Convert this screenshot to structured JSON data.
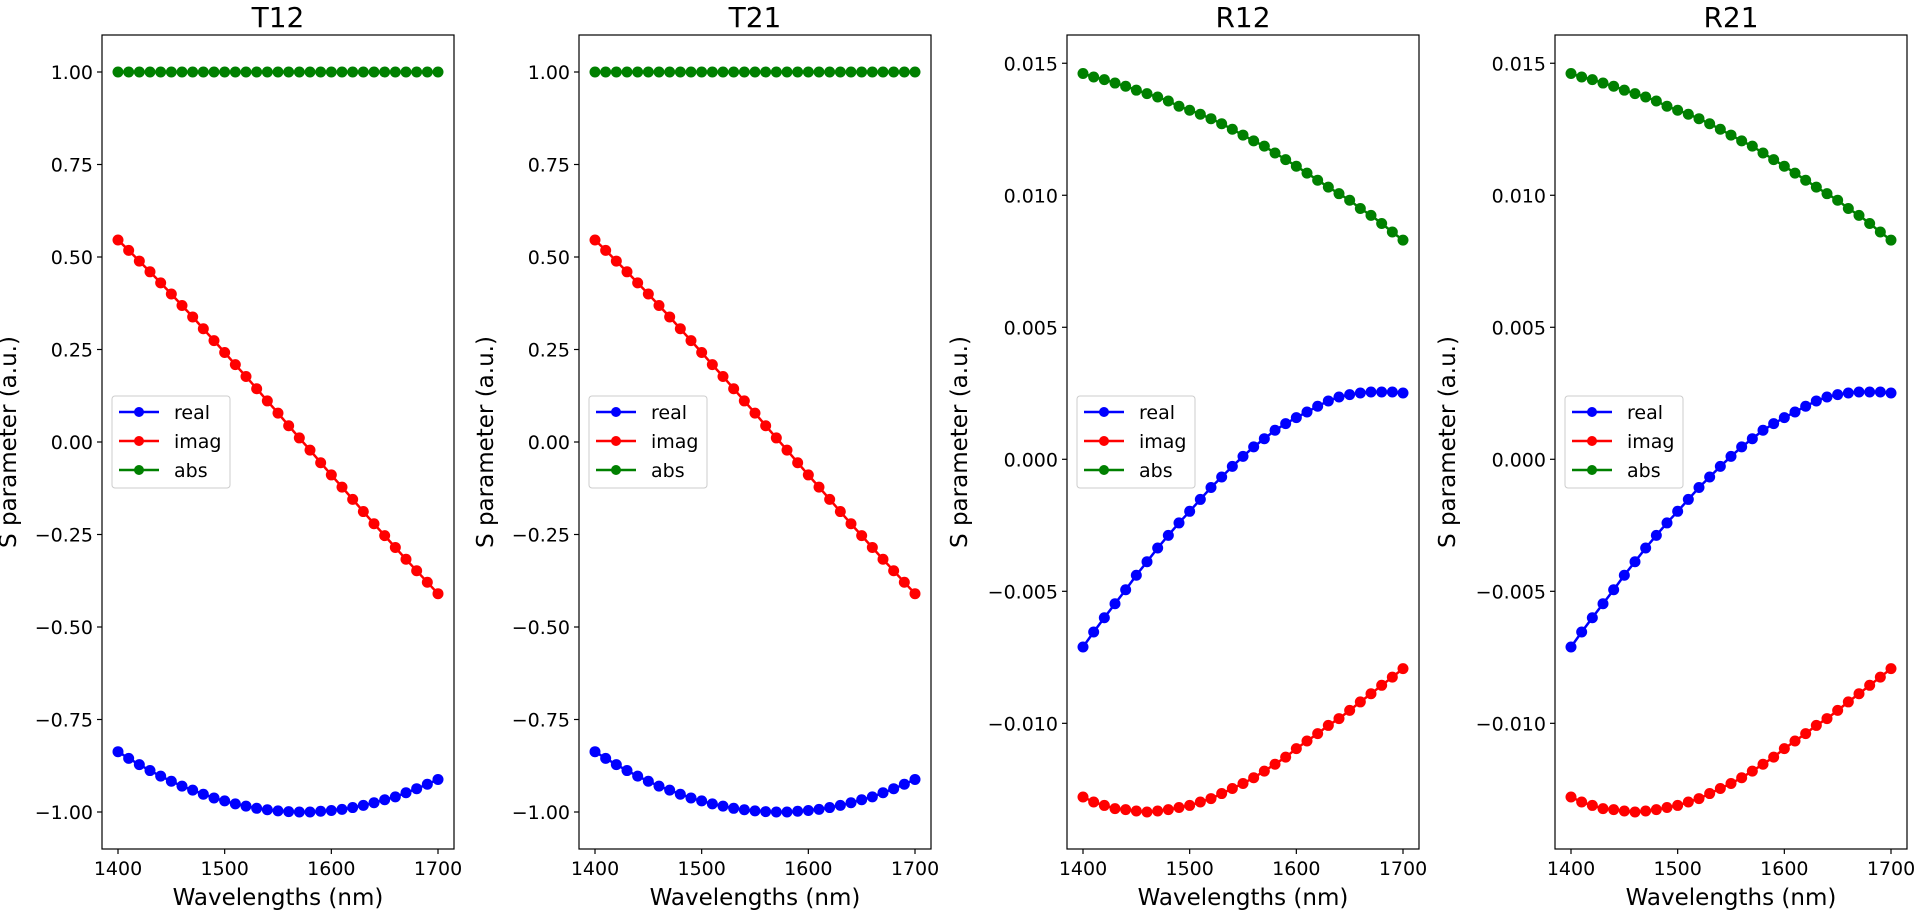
{
  "chart_data": [
    {
      "type": "line",
      "title": "T12",
      "xlabel": "Wavelengths (nm)",
      "ylabel": "S parameter (a.u.)",
      "xlim": [
        1385,
        1715
      ],
      "ylim": [
        -1.1,
        1.1
      ],
      "xticks": [
        1400,
        1500,
        1600,
        1700
      ],
      "xtick_labels": [
        "1400",
        "1500",
        "1600",
        "1700"
      ],
      "yticks": [
        -1.0,
        -0.75,
        -0.5,
        -0.25,
        0.0,
        0.25,
        0.5,
        0.75,
        1.0
      ],
      "ytick_labels": [
        "−1.00",
        "−0.75",
        "−0.50",
        "−0.25",
        "0.00",
        "0.25",
        "0.50",
        "0.75",
        "1.00"
      ],
      "legend_placement": "center-left",
      "x": [
        1400,
        1410,
        1420,
        1430,
        1440,
        1450,
        1460,
        1470,
        1480,
        1490,
        1500,
        1510,
        1520,
        1530,
        1540,
        1550,
        1560,
        1570,
        1580,
        1590,
        1600,
        1610,
        1620,
        1630,
        1640,
        1650,
        1660,
        1670,
        1680,
        1690,
        1700
      ],
      "series": [
        {
          "name": "real",
          "color": "#0000ff",
          "values": [
            -0.837,
            -0.855,
            -0.872,
            -0.888,
            -0.903,
            -0.917,
            -0.93,
            -0.941,
            -0.952,
            -0.962,
            -0.97,
            -0.978,
            -0.984,
            -0.99,
            -0.994,
            -0.997,
            -0.999,
            -1.0,
            -1.0,
            -0.998,
            -0.996,
            -0.993,
            -0.988,
            -0.982,
            -0.975,
            -0.967,
            -0.959,
            -0.948,
            -0.937,
            -0.925,
            -0.912
          ]
        },
        {
          "name": "imag",
          "color": "#ff0000",
          "values": [
            0.546,
            0.518,
            0.489,
            0.46,
            0.43,
            0.4,
            0.369,
            0.338,
            0.306,
            0.274,
            0.242,
            0.209,
            0.177,
            0.144,
            0.111,
            0.078,
            0.044,
            0.011,
            -0.022,
            -0.056,
            -0.089,
            -0.122,
            -0.155,
            -0.188,
            -0.221,
            -0.253,
            -0.285,
            -0.317,
            -0.348,
            -0.379,
            -0.41
          ]
        },
        {
          "name": "abs",
          "color": "#008000",
          "values": [
            1,
            1,
            1,
            1,
            1,
            1,
            1,
            1,
            1,
            1,
            1,
            1,
            1,
            1,
            1,
            1,
            1,
            1,
            1,
            1,
            1,
            1,
            1,
            1,
            1,
            1,
            1,
            1,
            1,
            1,
            1
          ]
        }
      ]
    },
    {
      "type": "line",
      "title": "T21",
      "xlabel": "Wavelengths (nm)",
      "ylabel": "S parameter (a.u.)",
      "xlim": [
        1385,
        1715
      ],
      "ylim": [
        -1.1,
        1.1
      ],
      "xticks": [
        1400,
        1500,
        1600,
        1700
      ],
      "xtick_labels": [
        "1400",
        "1500",
        "1600",
        "1700"
      ],
      "yticks": [
        -1.0,
        -0.75,
        -0.5,
        -0.25,
        0.0,
        0.25,
        0.5,
        0.75,
        1.0
      ],
      "ytick_labels": [
        "−1.00",
        "−0.75",
        "−0.50",
        "−0.25",
        "0.00",
        "0.25",
        "0.50",
        "0.75",
        "1.00"
      ],
      "legend_placement": "center-left",
      "x": [
        1400,
        1410,
        1420,
        1430,
        1440,
        1450,
        1460,
        1470,
        1480,
        1490,
        1500,
        1510,
        1520,
        1530,
        1540,
        1550,
        1560,
        1570,
        1580,
        1590,
        1600,
        1610,
        1620,
        1630,
        1640,
        1650,
        1660,
        1670,
        1680,
        1690,
        1700
      ],
      "series": [
        {
          "name": "real",
          "color": "#0000ff",
          "values": [
            -0.837,
            -0.855,
            -0.872,
            -0.888,
            -0.903,
            -0.917,
            -0.93,
            -0.941,
            -0.952,
            -0.962,
            -0.97,
            -0.978,
            -0.984,
            -0.99,
            -0.994,
            -0.997,
            -0.999,
            -1.0,
            -1.0,
            -0.998,
            -0.996,
            -0.993,
            -0.988,
            -0.982,
            -0.975,
            -0.967,
            -0.959,
            -0.948,
            -0.937,
            -0.925,
            -0.912
          ]
        },
        {
          "name": "imag",
          "color": "#ff0000",
          "values": [
            0.546,
            0.518,
            0.489,
            0.46,
            0.43,
            0.4,
            0.369,
            0.338,
            0.306,
            0.274,
            0.242,
            0.209,
            0.177,
            0.144,
            0.111,
            0.078,
            0.044,
            0.011,
            -0.022,
            -0.056,
            -0.089,
            -0.122,
            -0.155,
            -0.188,
            -0.221,
            -0.253,
            -0.285,
            -0.317,
            -0.348,
            -0.379,
            -0.41
          ]
        },
        {
          "name": "abs",
          "color": "#008000",
          "values": [
            1,
            1,
            1,
            1,
            1,
            1,
            1,
            1,
            1,
            1,
            1,
            1,
            1,
            1,
            1,
            1,
            1,
            1,
            1,
            1,
            1,
            1,
            1,
            1,
            1,
            1,
            1,
            1,
            1,
            1,
            1
          ]
        }
      ]
    },
    {
      "type": "line",
      "title": "R12",
      "xlabel": "Wavelengths (nm)",
      "ylabel": "S parameter (a.u.)",
      "xlim": [
        1385,
        1715
      ],
      "ylim": [
        -0.01476,
        0.01607
      ],
      "xticks": [
        1400,
        1500,
        1600,
        1700
      ],
      "xtick_labels": [
        "1400",
        "1500",
        "1600",
        "1700"
      ],
      "yticks": [
        -0.01,
        -0.005,
        0.0,
        0.005,
        0.01,
        0.015
      ],
      "ytick_labels": [
        "−0.010",
        "−0.005",
        "0.000",
        "0.005",
        "0.010",
        "0.015"
      ],
      "legend_placement": "center-left",
      "x": [
        1400,
        1410,
        1420,
        1430,
        1440,
        1450,
        1460,
        1470,
        1480,
        1490,
        1500,
        1510,
        1520,
        1530,
        1540,
        1550,
        1560,
        1570,
        1580,
        1590,
        1600,
        1610,
        1620,
        1630,
        1640,
        1650,
        1660,
        1670,
        1680,
        1690,
        1700
      ],
      "series": [
        {
          "name": "real",
          "color": "#0000ff",
          "values": [
            -0.00711,
            -0.00654,
            -0.006,
            -0.00547,
            -0.00494,
            -0.00439,
            -0.00388,
            -0.00336,
            -0.00288,
            -0.00241,
            -0.00197,
            -0.00152,
            -0.00107,
            -0.00067,
            -0.00027,
            0.00011,
            0.00047,
            0.00078,
            0.0011,
            0.00135,
            0.00158,
            0.00179,
            0.00201,
            0.00221,
            0.00236,
            0.00245,
            0.00251,
            0.00255,
            0.00255,
            0.00255,
            0.00251
          ]
        },
        {
          "name": "imag",
          "color": "#ff0000",
          "values": [
            -0.01279,
            -0.01298,
            -0.01311,
            -0.01323,
            -0.01327,
            -0.01332,
            -0.01336,
            -0.01332,
            -0.01327,
            -0.01319,
            -0.01311,
            -0.01298,
            -0.01285,
            -0.01266,
            -0.01247,
            -0.01228,
            -0.01206,
            -0.01181,
            -0.01155,
            -0.01128,
            -0.01096,
            -0.01067,
            -0.01039,
            -0.01008,
            -0.00982,
            -0.00951,
            -0.00919,
            -0.00888,
            -0.00856,
            -0.00825,
            -0.00793
          ]
        },
        {
          "name": "abs",
          "color": "#008000",
          "values": [
            0.01461,
            0.01448,
            0.01438,
            0.01425,
            0.01413,
            0.01398,
            0.01385,
            0.01372,
            0.01357,
            0.01337,
            0.01322,
            0.01307,
            0.0129,
            0.01271,
            0.0125,
            0.01228,
            0.01206,
            0.01186,
            0.0116,
            0.01135,
            0.0111,
            0.01084,
            0.01057,
            0.01031,
            0.01006,
            0.00981,
            0.0095,
            0.00924,
            0.00893,
            0.00861,
            0.0083
          ]
        }
      ]
    },
    {
      "type": "line",
      "title": "R21",
      "xlabel": "Wavelengths (nm)",
      "ylabel": "S parameter (a.u.)",
      "xlim": [
        1385,
        1715
      ],
      "ylim": [
        -0.01476,
        0.01607
      ],
      "xticks": [
        1400,
        1500,
        1600,
        1700
      ],
      "xtick_labels": [
        "1400",
        "1500",
        "1600",
        "1700"
      ],
      "yticks": [
        -0.01,
        -0.005,
        0.0,
        0.005,
        0.01,
        0.015
      ],
      "ytick_labels": [
        "−0.010",
        "−0.005",
        "0.000",
        "0.005",
        "0.010",
        "0.015"
      ],
      "legend_placement": "center-left",
      "x": [
        1400,
        1410,
        1420,
        1430,
        1440,
        1450,
        1460,
        1470,
        1480,
        1490,
        1500,
        1510,
        1520,
        1530,
        1540,
        1550,
        1560,
        1570,
        1580,
        1590,
        1600,
        1610,
        1620,
        1630,
        1640,
        1650,
        1660,
        1670,
        1680,
        1690,
        1700
      ],
      "series": [
        {
          "name": "real",
          "color": "#0000ff",
          "values": [
            -0.00711,
            -0.00654,
            -0.006,
            -0.00547,
            -0.00494,
            -0.00439,
            -0.00388,
            -0.00336,
            -0.00288,
            -0.00241,
            -0.00197,
            -0.00152,
            -0.00107,
            -0.00067,
            -0.00027,
            0.00011,
            0.00047,
            0.00078,
            0.0011,
            0.00135,
            0.00158,
            0.00179,
            0.00201,
            0.00221,
            0.00236,
            0.00245,
            0.00251,
            0.00255,
            0.00255,
            0.00255,
            0.00251
          ]
        },
        {
          "name": "imag",
          "color": "#ff0000",
          "values": [
            -0.01279,
            -0.01298,
            -0.01311,
            -0.01323,
            -0.01327,
            -0.01332,
            -0.01336,
            -0.01332,
            -0.01327,
            -0.01319,
            -0.01311,
            -0.01298,
            -0.01285,
            -0.01266,
            -0.01247,
            -0.01228,
            -0.01206,
            -0.01181,
            -0.01155,
            -0.01128,
            -0.01096,
            -0.01067,
            -0.01039,
            -0.01008,
            -0.00982,
            -0.00951,
            -0.00919,
            -0.00888,
            -0.00856,
            -0.00825,
            -0.00793
          ]
        },
        {
          "name": "abs",
          "color": "#008000",
          "values": [
            0.01461,
            0.01448,
            0.01438,
            0.01425,
            0.01413,
            0.01398,
            0.01385,
            0.01372,
            0.01357,
            0.01337,
            0.01322,
            0.01307,
            0.0129,
            0.01271,
            0.0125,
            0.01228,
            0.01206,
            0.01186,
            0.0116,
            0.01135,
            0.0111,
            0.01084,
            0.01057,
            0.01031,
            0.01006,
            0.00981,
            0.0095,
            0.00924,
            0.00893,
            0.00861,
            0.0083
          ]
        }
      ]
    }
  ]
}
